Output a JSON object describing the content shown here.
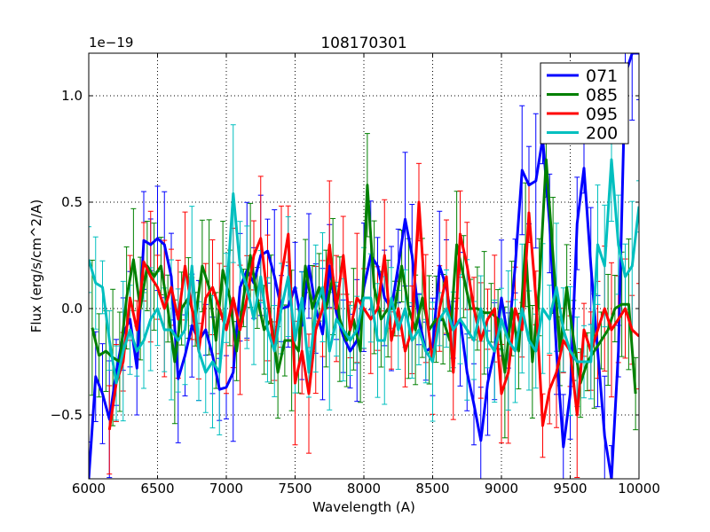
{
  "chart_data": {
    "type": "line",
    "title": "108170301",
    "xlabel": "Wavelength (A)",
    "ylabel": "Flux (erg/s/cm^2/A)",
    "y_offset_label": "1e−19",
    "xlim": [
      6000,
      10000
    ],
    "ylim": [
      -0.8,
      1.2
    ],
    "grid": true,
    "legend_position": "top-right",
    "x_ticks": [
      6000,
      6500,
      7000,
      7500,
      8000,
      8500,
      9000,
      9500,
      10000
    ],
    "x_tick_labels": [
      "6000",
      "6500",
      "7000",
      "7500",
      "8000",
      "8500",
      "9000",
      "9500",
      "10000"
    ],
    "y_ticks": [
      -0.5,
      0.0,
      0.5,
      1.0
    ],
    "y_tick_labels": [
      "−0.5",
      "0.0",
      "0.5",
      "1.0"
    ],
    "series": [
      {
        "name": "071",
        "color": "#0000ff",
        "x": [
          6000,
          6050,
          6100,
          6150,
          6200,
          6250,
          6300,
          6350,
          6400,
          6450,
          6500,
          6550,
          6600,
          6650,
          6700,
          6750,
          6800,
          6850,
          6900,
          6950,
          7000,
          7050,
          7100,
          7150,
          7200,
          7250,
          7300,
          7350,
          7400,
          7450,
          7500,
          7550,
          7600,
          7650,
          7700,
          7750,
          7800,
          7850,
          7900,
          7950,
          8000,
          8050,
          8100,
          8150,
          8200,
          8250,
          8300,
          8350,
          8400,
          8450,
          8500,
          8550,
          8600,
          8650,
          8700,
          8750,
          8800,
          8850,
          8900,
          8950,
          9000,
          9050,
          9100,
          9150,
          9200,
          9250,
          9300,
          9350,
          9400,
          9450,
          9500,
          9550,
          9600,
          9650,
          9700,
          9750,
          9800,
          9850,
          9900,
          9950,
          10000
        ],
        "y": [
          -0.8,
          -0.32,
          -0.4,
          -0.52,
          -0.3,
          -0.12,
          -0.05,
          -0.28,
          0.32,
          0.3,
          0.33,
          0.3,
          0.15,
          -0.33,
          -0.22,
          -0.08,
          -0.15,
          -0.1,
          -0.22,
          -0.38,
          -0.37,
          -0.3,
          0.1,
          0.18,
          0.12,
          0.25,
          0.27,
          0.15,
          0.0,
          0.01,
          0.1,
          -0.08,
          0.2,
          0.0,
          -0.12,
          0.2,
          -0.02,
          -0.13,
          -0.2,
          -0.15,
          0.1,
          0.25,
          0.2,
          0.05,
          0.0,
          0.2,
          0.42,
          0.25,
          -0.05,
          -0.2,
          -0.18,
          0.2,
          0.1,
          -0.1,
          -0.05,
          -0.3,
          -0.45,
          -0.62,
          -0.35,
          -0.2,
          0.05,
          -0.15,
          0.2,
          0.65,
          0.58,
          0.6,
          0.8,
          0.4,
          -0.2,
          -0.65,
          -0.4,
          0.4,
          0.66,
          0.2,
          -0.2,
          -0.6,
          -0.8,
          -0.2,
          1.1,
          1.2,
          1.2
        ]
      },
      {
        "name": "085",
        "color": "#008000",
        "x": [
          6025,
          6075,
          6125,
          6175,
          6225,
          6275,
          6325,
          6375,
          6425,
          6475,
          6525,
          6575,
          6625,
          6675,
          6725,
          6775,
          6825,
          6875,
          6925,
          6975,
          7025,
          7075,
          7125,
          7175,
          7225,
          7275,
          7325,
          7375,
          7425,
          7475,
          7525,
          7575,
          7625,
          7675,
          7725,
          7775,
          7825,
          7875,
          7925,
          7975,
          8025,
          8075,
          8125,
          8175,
          8225,
          8275,
          8325,
          8375,
          8425,
          8475,
          8525,
          8575,
          8625,
          8675,
          8725,
          8775,
          8825,
          8875,
          8925,
          8975,
          9025,
          9075,
          9125,
          9175,
          9225,
          9275,
          9325,
          9375,
          9425,
          9475,
          9525,
          9575,
          9625,
          9675,
          9725,
          9775,
          9825,
          9875,
          9925,
          9975
        ],
        "y": [
          -0.09,
          -0.22,
          -0.2,
          -0.23,
          -0.25,
          0.05,
          0.23,
          0.0,
          0.2,
          0.15,
          0.2,
          0.0,
          -0.25,
          0.0,
          0.05,
          -0.05,
          0.2,
          0.1,
          -0.15,
          0.18,
          0.05,
          -0.2,
          0.05,
          0.25,
          0.05,
          -0.1,
          -0.05,
          -0.3,
          -0.15,
          -0.15,
          -0.2,
          0.2,
          0.0,
          0.1,
          0.0,
          0.15,
          -0.05,
          -0.15,
          -0.05,
          -0.2,
          0.58,
          0.1,
          -0.05,
          0.0,
          0.0,
          0.2,
          0.0,
          -0.1,
          0.05,
          -0.1,
          -0.05,
          -0.05,
          -0.15,
          0.3,
          0.15,
          0.0,
          0.0,
          -0.02,
          -0.02,
          -0.05,
          -0.3,
          0.0,
          -0.2,
          0.3,
          -0.25,
          0.1,
          0.7,
          0.25,
          -0.2,
          0.1,
          -0.15,
          -0.35,
          -0.25,
          -0.2,
          -0.15,
          -0.1,
          0.0,
          0.02,
          0.02,
          -0.4
        ]
      },
      {
        "name": "095",
        "color": "#ff0000",
        "x": [
          6150,
          6200,
          6250,
          6300,
          6350,
          6400,
          6450,
          6500,
          6550,
          6600,
          6650,
          6700,
          6750,
          6800,
          6850,
          6900,
          6950,
          7000,
          7050,
          7100,
          7150,
          7200,
          7250,
          7300,
          7350,
          7400,
          7450,
          7500,
          7550,
          7600,
          7650,
          7700,
          7750,
          7800,
          7850,
          7900,
          7950,
          8000,
          8050,
          8100,
          8150,
          8200,
          8250,
          8300,
          8350,
          8400,
          8450,
          8500,
          8550,
          8600,
          8650,
          8700,
          8750,
          8800,
          8850,
          8900,
          8950,
          9000,
          9050,
          9100,
          9150,
          9200,
          9250,
          9300,
          9350,
          9400,
          9450,
          9500,
          9550,
          9600,
          9650,
          9700,
          9750,
          9800,
          9850,
          9900,
          9950,
          10000
        ],
        "y": [
          -0.57,
          -0.35,
          -0.25,
          0.05,
          -0.1,
          0.22,
          0.15,
          0.1,
          0.0,
          0.1,
          -0.05,
          0.2,
          0.0,
          -0.2,
          0.05,
          0.1,
          0.0,
          -0.1,
          0.05,
          -0.1,
          0.05,
          0.25,
          0.33,
          0.05,
          -0.2,
          0.15,
          0.35,
          -0.35,
          -0.2,
          -0.4,
          -0.1,
          0.0,
          0.3,
          0.0,
          0.25,
          -0.1,
          0.05,
          0.0,
          -0.05,
          0.0,
          0.25,
          -0.15,
          0.0,
          -0.2,
          -0.1,
          0.5,
          0.0,
          -0.25,
          0.0,
          0.15,
          -0.3,
          0.35,
          0.2,
          0.0,
          -0.15,
          -0.05,
          0.0,
          -0.4,
          -0.3,
          0.0,
          -0.1,
          0.45,
          0.05,
          -0.55,
          -0.38,
          -0.3,
          -0.15,
          -0.2,
          -0.5,
          -0.1,
          -0.2,
          -0.1,
          0.0,
          -0.1,
          -0.05,
          0.0,
          -0.1,
          -0.13
        ]
      },
      {
        "name": "200",
        "color": "#00bfbf",
        "x": [
          6000,
          6050,
          6100,
          6150,
          6200,
          6250,
          6300,
          6350,
          6400,
          6450,
          6500,
          6550,
          6600,
          6650,
          6700,
          6750,
          6800,
          6850,
          6900,
          6950,
          7000,
          7050,
          7100,
          7150,
          7200,
          7250,
          7300,
          7350,
          7400,
          7450,
          7500,
          7550,
          7600,
          7650,
          7700,
          7750,
          7800,
          7850,
          7900,
          7950,
          8000,
          8050,
          8100,
          8150,
          8200,
          8250,
          8300,
          8350,
          8400,
          8450,
          8500,
          8550,
          8600,
          8650,
          8700,
          8750,
          8800,
          8850,
          8900,
          8950,
          9000,
          9050,
          9100,
          9150,
          9200,
          9250,
          9300,
          9350,
          9400,
          9450,
          9500,
          9550,
          9600,
          9650,
          9700,
          9750,
          9800,
          9850,
          9900,
          9950,
          10000
        ],
        "y": [
          0.23,
          0.12,
          0.1,
          -0.15,
          -0.35,
          -0.2,
          -0.1,
          -0.2,
          -0.15,
          -0.05,
          0.0,
          -0.1,
          -0.1,
          -0.15,
          -0.1,
          0.2,
          -0.2,
          -0.3,
          -0.25,
          -0.3,
          0.05,
          0.54,
          0.2,
          0.1,
          -0.05,
          0.15,
          -0.1,
          -0.2,
          0.0,
          0.15,
          -0.15,
          0.05,
          -0.3,
          0.0,
          0.1,
          -0.2,
          -0.05,
          -0.1,
          -0.15,
          -0.1,
          0.05,
          0.05,
          -0.15,
          -0.15,
          0.05,
          -0.1,
          0.0,
          -0.15,
          -0.1,
          -0.2,
          -0.25,
          -0.05,
          0.0,
          -0.1,
          -0.05,
          -0.1,
          -0.15,
          0.0,
          -0.15,
          -0.2,
          -0.05,
          -0.15,
          -0.2,
          0.0,
          -0.15,
          -0.2,
          0.0,
          -0.05,
          0.1,
          -0.1,
          -0.2,
          -0.25,
          -0.25,
          -0.25,
          0.3,
          0.2,
          0.7,
          0.3,
          0.15,
          0.2,
          0.48
        ]
      }
    ]
  }
}
